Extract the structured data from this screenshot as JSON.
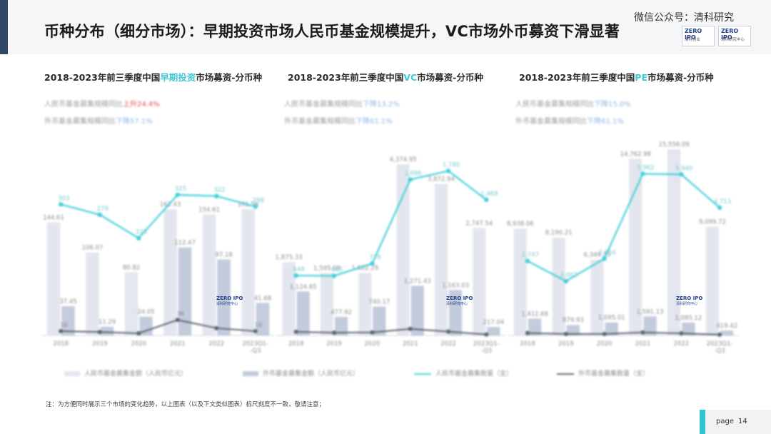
{
  "title": "币种分布（细分市场）：早期投资市场人民币基金规模提升，VC市场外币募资下滑显著",
  "watermark": "微信公众号：清科研究",
  "logos": [
    {
      "top": "ZERO IPO",
      "bottom": "清科创业"
    },
    {
      "top": "ZERO IPO",
      "bottom": "清科研究中心"
    }
  ],
  "chart_logo": {
    "top": "ZERO IPO",
    "bottom": "清科研究中心"
  },
  "colors": {
    "accent": "#2f4868",
    "rmb_amount": "#e3e6ee",
    "fx_amount": "#c3cbdc",
    "rmb_count": "#43cfd8",
    "fx_count": "#5a6270",
    "highlight": "#3ec9d6"
  },
  "chart_data": [
    {
      "type": "bar",
      "subtitle_pre": "2018-2023年前三季度中国",
      "subtitle_hl": "早期投资",
      "subtitle_post": "市场募资-分币种",
      "stats": [
        {
          "label": "人民币基金募集规模同比",
          "value": "上升24.4%"
        },
        {
          "label": "外币基金募集规模同比",
          "value": "下降57.1%"
        }
      ],
      "categories": [
        "2018",
        "2019",
        "2020",
        "2021",
        "2022",
        "2023Q1-Q3"
      ],
      "series": [
        {
          "name": "人民币基金募集金额（人民币亿元）",
          "kind": "bar",
          "values": [
            144.61,
            106.07,
            80.82,
            161.43,
            154.61,
            161.56
          ]
        },
        {
          "name": "外币基金募集金额（人民币亿元）",
          "kind": "bar",
          "values": [
            37.45,
            11.29,
            24.05,
            112.47,
            97.18,
            41.68
          ]
        },
        {
          "name": "人民币基金募集数量（支）",
          "kind": "line",
          "values": [
            303,
            279,
            225,
            325,
            322,
            298
          ]
        },
        {
          "name": "外币基金募集数量（支）",
          "kind": "line",
          "values": [
            10,
            8,
            5,
            36,
            17,
            10
          ]
        }
      ],
      "value_labels_bar1": [
        "144.61",
        "106.07",
        "80.82",
        "161.43",
        "154.61",
        "161.56"
      ],
      "value_labels_bar2": [
        "37.45",
        "11.29",
        "24.05",
        "112.47",
        "97.18",
        "41.68"
      ],
      "value_labels_line1": [
        "303",
        "279",
        "225",
        "325",
        "322",
        "298"
      ],
      "value_labels_line2": [
        "10",
        "",
        "",
        "36",
        "",
        "10"
      ],
      "ylim_bar": [
        0,
        260
      ],
      "ylim_line": [
        0,
        470
      ]
    },
    {
      "type": "bar",
      "subtitle_pre": "2018-2023年前三季度中国",
      "subtitle_hl": "VC",
      "subtitle_post": "市场募资-分币种",
      "stats": [
        {
          "label": "人民币基金募集规模同比",
          "value": "下降13.2%"
        },
        {
          "label": "外币基金募集规模同比",
          "value": "下降61.1%"
        }
      ],
      "categories": [
        "2018",
        "2019",
        "2020",
        "2021",
        "2022",
        "2023Q1-Q3"
      ],
      "series": [
        {
          "name": "人民币基金募集金额（人民币亿元）",
          "kind": "bar",
          "values": [
            1875.33,
            1595.08,
            1602.29,
            4374.95,
            3872.94,
            2747.54
          ]
        },
        {
          "name": "外币基金募集金额（人民币亿元）",
          "kind": "bar",
          "values": [
            1124.65,
            477.92,
            740.17,
            1271.43,
            1163.03,
            217.04
          ]
        },
        {
          "name": "人民币基金募集数量（支）",
          "kind": "line",
          "values": [
            648,
            645,
            778,
            1686,
            1780,
            1468
          ]
        },
        {
          "name": "外币基金募集数量（支）",
          "kind": "line",
          "values": [
            40,
            30,
            33,
            71,
            42,
            11
          ]
        }
      ],
      "value_labels_bar1": [
        "1,875.33",
        "1,595.08",
        "1,602.29",
        "4,374.95",
        "3,872.94",
        "2,747.54"
      ],
      "value_labels_bar2": [
        "1,124.65",
        "477.92",
        "740.17",
        "1,271.43",
        "1,163.03",
        "217.04"
      ],
      "value_labels_line1": [
        "648",
        "645",
        "778",
        "1,686",
        "1,780",
        "1,468"
      ],
      "value_labels_line2": [
        "",
        "",
        "",
        "",
        "",
        ""
      ],
      "ylim_bar": [
        0,
        5200
      ],
      "ylim_line": [
        0,
        2200
      ]
    },
    {
      "type": "bar",
      "subtitle_pre": "2018-2023年前三季度中国",
      "subtitle_hl": "PE",
      "subtitle_post": "市场募资-分币种",
      "stats": [
        {
          "label": "人民币基金募集规模同比",
          "value": "下降15.0%"
        },
        {
          "label": "外币基金募集规模同比",
          "value": "下降61.1%"
        }
      ],
      "categories": [
        "2018",
        "2019",
        "2020",
        "2021",
        "2022",
        "2023Q1-Q3"
      ],
      "series": [
        {
          "name": "人民币基金募集金额（人民币亿元）",
          "kind": "bar",
          "values": [
            8938.06,
            8190.21,
            6349.35,
            14762.98,
            15556.09,
            9099.72
          ]
        },
        {
          "name": "外币基金募集金额（人民币亿元）",
          "kind": "bar",
          "values": [
            1412.68,
            879.93,
            1095.01,
            1591.13,
            1085.12,
            419.42
          ]
        },
        {
          "name": "人民币基金募集数量（支）",
          "kind": "line",
          "values": [
            2747,
            2002,
            2834,
            5962,
            5940,
            4713
          ]
        },
        {
          "name": "外币基金募集数量（支）",
          "kind": "line",
          "values": [
            90,
            56,
            55,
            112,
            80,
            30
          ]
        }
      ],
      "value_labels_bar1": [
        "8,938.06",
        "8,190.21",
        "6,349.35",
        "14,762.98",
        "15,556.09",
        "9,099.72"
      ],
      "value_labels_bar2": [
        "1,412.68",
        "879.93",
        "1,095.01",
        "1,591.13",
        "1,085.12",
        "419.42"
      ],
      "value_labels_line1": [
        "2,747",
        "2,002",
        "2,834",
        "5,962",
        "5,940",
        "4,713"
      ],
      "value_labels_line2": [
        "",
        "",
        "",
        "",
        "",
        ""
      ],
      "ylim_bar": [
        0,
        17000
      ],
      "ylim_line": [
        0,
        7500
      ]
    }
  ],
  "legend": [
    {
      "label": "人民币基金募集金额（人民币亿元）",
      "kind": "bar1"
    },
    {
      "label": "外币基金募集金额（人民币亿元）",
      "kind": "bar2"
    },
    {
      "label": "人民币基金募集数量（支）",
      "kind": "line1"
    },
    {
      "label": "外币基金募集数量（支）",
      "kind": "line2"
    }
  ],
  "footnote": "注：为方便同时展示三个市场的变化趋势，以上图表（以及下文类似图表）标尺刻度不一致，敬请注意；",
  "page": {
    "label": "page",
    "number": "14"
  }
}
